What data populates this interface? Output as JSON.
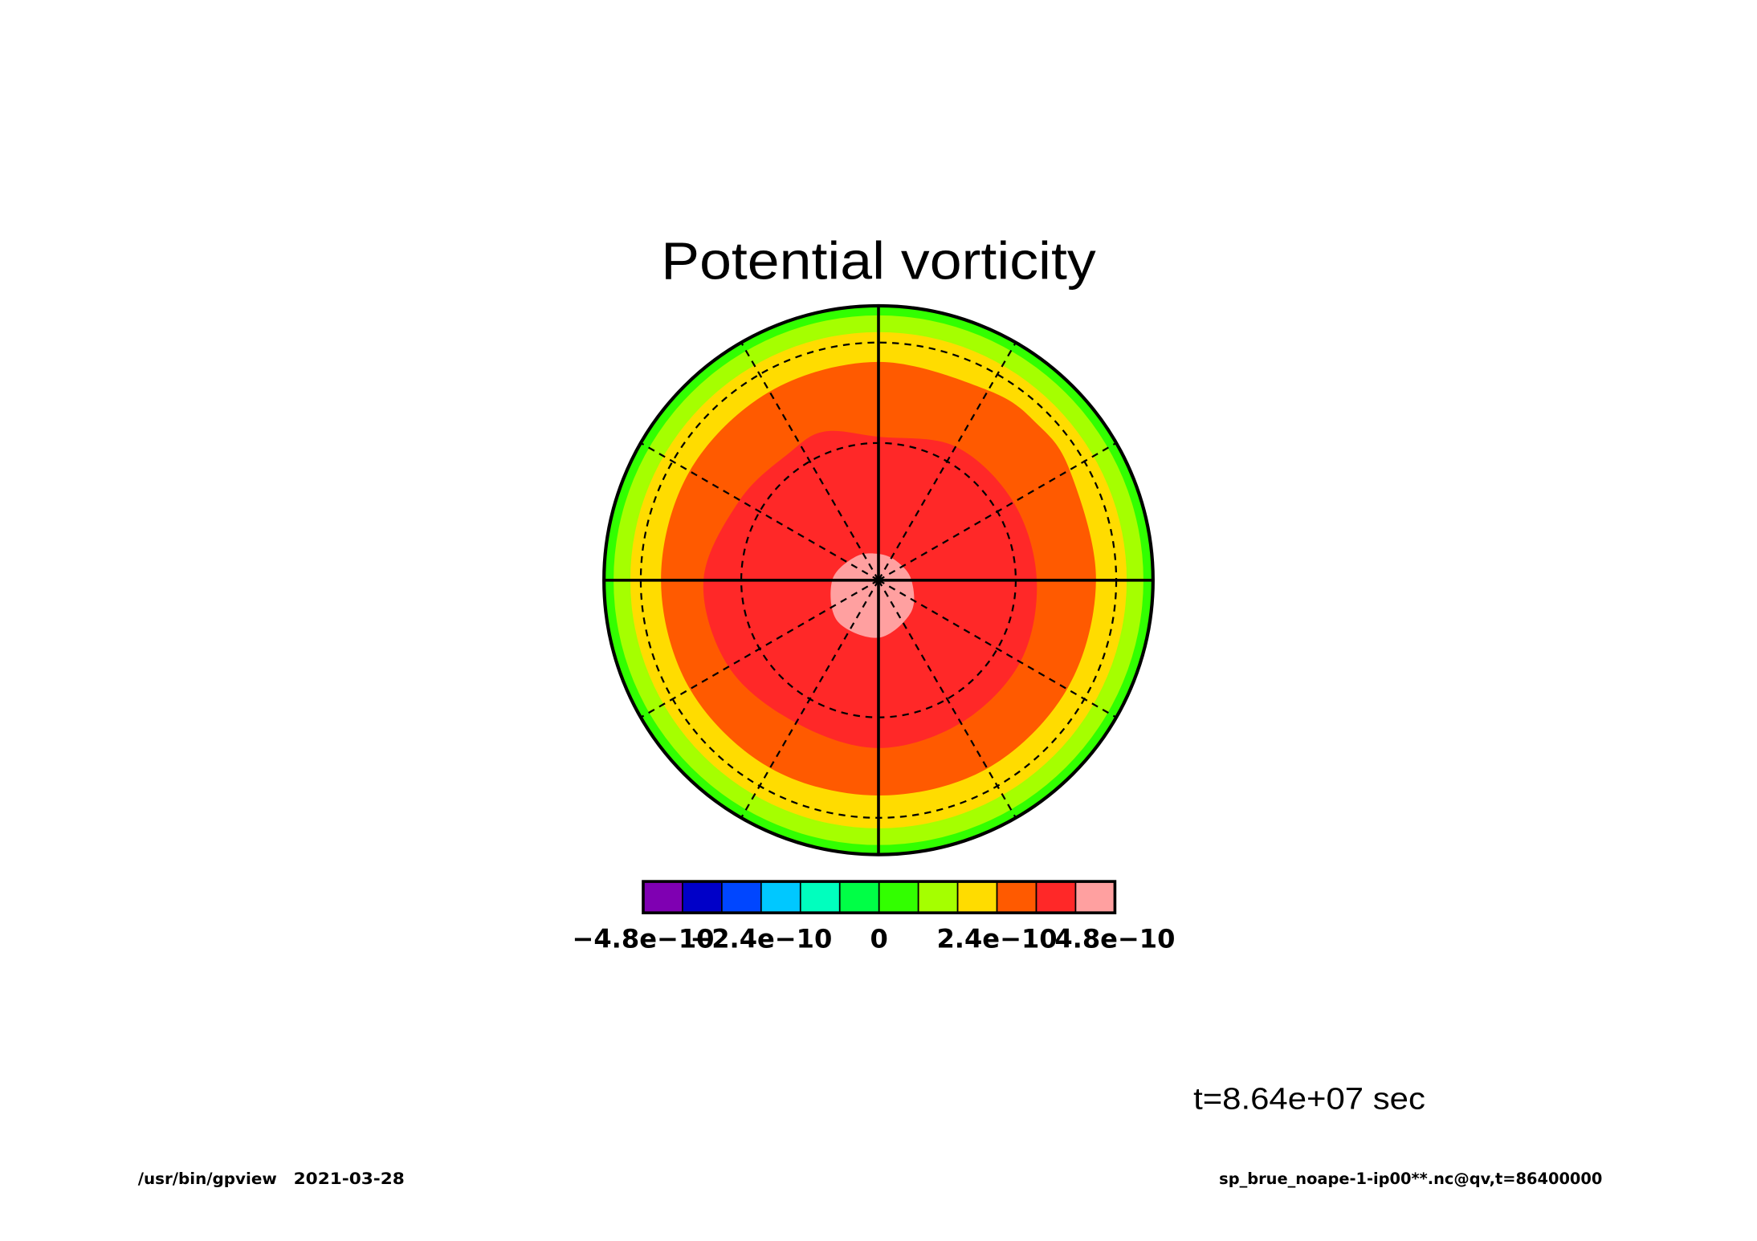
{
  "chart_data": {
    "type": "heatmap",
    "title": "Potential vorticity",
    "levels": [
      -4.8e-10,
      -4e-10,
      -3.2e-10,
      -2.4e-10,
      -1.6e-10,
      -8e-11,
      0,
      8e-11,
      1.6e-10,
      2.4e-10,
      3.2e-10,
      4e-10,
      4.8e-10
    ],
    "colors": [
      "#7f00b2",
      "#0000c8",
      "#0046ff",
      "#00c8ff",
      "#00ffbe",
      "#00ff46",
      "#32ff00",
      "#a5ff00",
      "#ffdc00",
      "#ff5a00",
      "#ff2828",
      "#ffa0a0"
    ],
    "colorbar": {
      "placement": "bottom",
      "tick_values": [
        -4.8e-10,
        -2.4e-10,
        0,
        2.4e-10,
        4.8e-10
      ],
      "tick_labels": [
        "−4.8e−10",
        "−2.4e−10",
        "0",
        "2.4e−10",
        "4.8e−10"
      ]
    },
    "grid": {
      "lat_circles": [
        30,
        60
      ],
      "lon_interval": 30
    },
    "regions": [
      {
        "level_index": 6,
        "boundary_lat": 0
      },
      {
        "level_index": 7,
        "boundary_lat": 15.2
      },
      {
        "level_index": 8,
        "boundary_lat": 25.3
      },
      {
        "level_index": 9,
        "boundary": [
          [
            0,
            38.3
          ],
          [
            30,
            37.6
          ],
          [
            60,
            37.5
          ],
          [
            90,
            37.6
          ],
          [
            120,
            36.5
          ],
          [
            135,
            35.8
          ],
          [
            150,
            37.0
          ],
          [
            180,
            37.3
          ],
          [
            210,
            37.5
          ],
          [
            240,
            37.4
          ],
          [
            270,
            37.6
          ],
          [
            300,
            37.5
          ],
          [
            330,
            37.8
          ]
        ]
      },
      {
        "level_index": 10,
        "boundary": [
          [
            0,
            52.3
          ],
          [
            30,
            53.1
          ],
          [
            60,
            53.4
          ],
          [
            90,
            54.8
          ],
          [
            120,
            55.4
          ],
          [
            150,
            55.8
          ],
          [
            180,
            58.5
          ],
          [
            200,
            54.8
          ],
          [
            215,
            55.5
          ],
          [
            240,
            54.3
          ],
          [
            270,
            50.4
          ],
          [
            300,
            50.9
          ],
          [
            330,
            53.1
          ]
        ]
      },
      {
        "level_index": 11,
        "boundary": [
          [
            0,
            77.9
          ],
          [
            45,
            80.4
          ],
          [
            90,
            83.1
          ],
          [
            135,
            84.5
          ],
          [
            180,
            84.5
          ],
          [
            225,
            83.1
          ],
          [
            270,
            80.3
          ],
          [
            315,
            77.8
          ]
        ]
      }
    ],
    "annotation": "t=8.64e+07 sec"
  },
  "footer": {
    "program": "/usr/bin/gpview",
    "date": "2021-03-28",
    "source": "sp_brue_noape-1-ip00**.nc@qv,t=86400000"
  }
}
